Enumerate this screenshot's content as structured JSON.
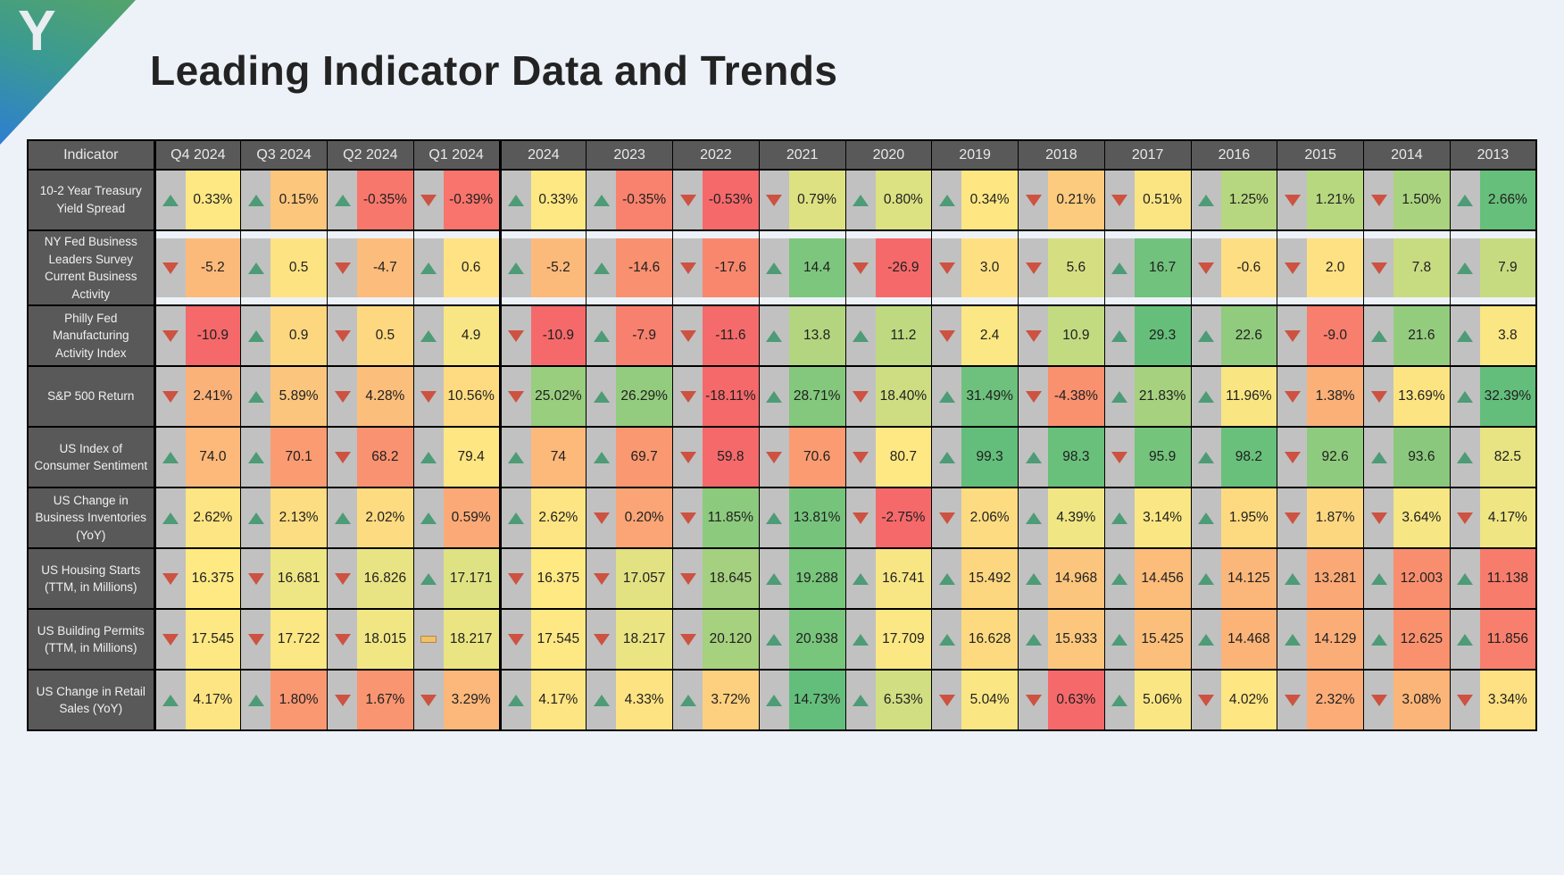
{
  "logo": {
    "letter": "Y"
  },
  "title": "Leading Indicator Data and Trends",
  "chart_data": {
    "type": "table",
    "title": "Leading Indicator Data and Trends",
    "columns": [
      "Indicator",
      "Q4 2024",
      "Q3 2024",
      "Q2 2024",
      "Q1 2024",
      "2024",
      "2023",
      "2022",
      "2021",
      "2020",
      "2019",
      "2018",
      "2017",
      "2016",
      "2015",
      "2014",
      "2013"
    ],
    "legend": {
      "up_color": "#4d9b77",
      "down_color": "#cd5241",
      "neutral_color": "#edc26b",
      "icon_strip_color": "#c1c1c1",
      "header_color": "#595959"
    },
    "rows": [
      {
        "indicator": "10-2 Year Treasury Yield Spread",
        "cells": [
          {
            "trend": "up",
            "value": "0.33%",
            "bg": "#FEE883"
          },
          {
            "trend": "up",
            "value": "0.15%",
            "bg": "#FCC67D"
          },
          {
            "trend": "up",
            "value": "-0.35%",
            "bg": "#F8776C"
          },
          {
            "trend": "down",
            "value": "-0.39%",
            "bg": "#F8746C"
          },
          {
            "trend": "up",
            "value": "0.33%",
            "bg": "#FEE883"
          },
          {
            "trend": "up",
            "value": "-0.35%",
            "bg": "#F8826E"
          },
          {
            "trend": "down",
            "value": "-0.53%",
            "bg": "#F5696B"
          },
          {
            "trend": "down",
            "value": "0.79%",
            "bg": "#DDE182"
          },
          {
            "trend": "up",
            "value": "0.80%",
            "bg": "#DCE182"
          },
          {
            "trend": "up",
            "value": "0.34%",
            "bg": "#FEE783"
          },
          {
            "trend": "down",
            "value": "0.21%",
            "bg": "#FCCB7E"
          },
          {
            "trend": "down",
            "value": "0.51%",
            "bg": "#FBE583"
          },
          {
            "trend": "up",
            "value": "1.25%",
            "bg": "#B6D77F"
          },
          {
            "trend": "down",
            "value": "1.21%",
            "bg": "#B8D880"
          },
          {
            "trend": "down",
            "value": "1.50%",
            "bg": "#AAD37F"
          },
          {
            "trend": "up",
            "value": "2.66%",
            "bg": "#66BF7B"
          }
        ]
      },
      {
        "indicator": "NY Fed Business Leaders Survey Current Business Activity",
        "cells": [
          {
            "trend": "down",
            "value": "-5.2",
            "bg": "#FCBA7A"
          },
          {
            "trend": "up",
            "value": "0.5",
            "bg": "#FEE383"
          },
          {
            "trend": "down",
            "value": "-4.7",
            "bg": "#FCBC7B"
          },
          {
            "trend": "up",
            "value": "0.6",
            "bg": "#FEE283"
          },
          {
            "trend": "up",
            "value": "-5.2",
            "bg": "#FCBA7A"
          },
          {
            "trend": "up",
            "value": "-14.6",
            "bg": "#F9906F"
          },
          {
            "trend": "down",
            "value": "-17.6",
            "bg": "#F8876E"
          },
          {
            "trend": "up",
            "value": "14.4",
            "bg": "#7DC67D"
          },
          {
            "trend": "down",
            "value": "-26.9",
            "bg": "#F5696B"
          },
          {
            "trend": "down",
            "value": "3.0",
            "bg": "#FEE083"
          },
          {
            "trend": "down",
            "value": "5.6",
            "bg": "#D5DF82"
          },
          {
            "trend": "up",
            "value": "16.7",
            "bg": "#70C27C"
          },
          {
            "trend": "down",
            "value": "-0.6",
            "bg": "#FEDE82"
          },
          {
            "trend": "down",
            "value": "2.0",
            "bg": "#FEE183"
          },
          {
            "trend": "down",
            "value": "7.8",
            "bg": "#C7DB80"
          },
          {
            "trend": "up",
            "value": "7.9",
            "bg": "#C6DB80"
          }
        ]
      },
      {
        "indicator": "Philly Fed Manufacturing Activity Index",
        "cells": [
          {
            "trend": "down",
            "value": "-10.9",
            "bg": "#F5696B"
          },
          {
            "trend": "up",
            "value": "0.9",
            "bg": "#FDD780"
          },
          {
            "trend": "down",
            "value": "0.5",
            "bg": "#FDD880"
          },
          {
            "trend": "up",
            "value": "4.9",
            "bg": "#F8E684"
          },
          {
            "trend": "down",
            "value": "-10.9",
            "bg": "#F5696B"
          },
          {
            "trend": "up",
            "value": "-7.9",
            "bg": "#F8806E"
          },
          {
            "trend": "down",
            "value": "-11.6",
            "bg": "#F56B6B"
          },
          {
            "trend": "up",
            "value": "13.8",
            "bg": "#B3D57F"
          },
          {
            "trend": "up",
            "value": "11.2",
            "bg": "#BFD980"
          },
          {
            "trend": "down",
            "value": "2.4",
            "bg": "#FBE783"
          },
          {
            "trend": "down",
            "value": "10.9",
            "bg": "#C2DA80"
          },
          {
            "trend": "up",
            "value": "29.3",
            "bg": "#65BF7B"
          },
          {
            "trend": "up",
            "value": "22.6",
            "bg": "#90CB7E"
          },
          {
            "trend": "down",
            "value": "-9.0",
            "bg": "#F87E6D"
          },
          {
            "trend": "up",
            "value": "21.6",
            "bg": "#94CC7E"
          },
          {
            "trend": "up",
            "value": "3.8",
            "bg": "#FAE683"
          }
        ]
      },
      {
        "indicator": "S&P 500 Return",
        "cells": [
          {
            "trend": "down",
            "value": "2.41%",
            "bg": "#FBB279"
          },
          {
            "trend": "up",
            "value": "5.89%",
            "bg": "#FCC57D"
          },
          {
            "trend": "down",
            "value": "4.28%",
            "bg": "#FCBE7B"
          },
          {
            "trend": "down",
            "value": "10.56%",
            "bg": "#FEDB81"
          },
          {
            "trend": "down",
            "value": "25.02%",
            "bg": "#98CE7E"
          },
          {
            "trend": "up",
            "value": "26.29%",
            "bg": "#93CC7E"
          },
          {
            "trend": "down",
            "value": "-18.11%",
            "bg": "#F5696B"
          },
          {
            "trend": "up",
            "value": "28.71%",
            "bg": "#83C87D"
          },
          {
            "trend": "down",
            "value": "18.40%",
            "bg": "#CEDD81"
          },
          {
            "trend": "up",
            "value": "31.49%",
            "bg": "#6DC17C"
          },
          {
            "trend": "down",
            "value": "-4.38%",
            "bg": "#F9916F"
          },
          {
            "trend": "up",
            "value": "21.83%",
            "bg": "#A6D17F"
          },
          {
            "trend": "up",
            "value": "11.96%",
            "bg": "#F9E683"
          },
          {
            "trend": "down",
            "value": "1.38%",
            "bg": "#FBB078"
          },
          {
            "trend": "down",
            "value": "13.69%",
            "bg": "#FDE483"
          },
          {
            "trend": "up",
            "value": "32.39%",
            "bg": "#63BE7B"
          }
        ]
      },
      {
        "indicator": "US Index of Consumer Sentiment",
        "cells": [
          {
            "trend": "up",
            "value": "74.0",
            "bg": "#FCB97A"
          },
          {
            "trend": "up",
            "value": "70.1",
            "bg": "#FA9B72"
          },
          {
            "trend": "down",
            "value": "68.2",
            "bg": "#F99270"
          },
          {
            "trend": "up",
            "value": "79.4",
            "bg": "#FEE683"
          },
          {
            "trend": "up",
            "value": "74",
            "bg": "#FCB97A"
          },
          {
            "trend": "up",
            "value": "69.7",
            "bg": "#F99871"
          },
          {
            "trend": "down",
            "value": "59.8",
            "bg": "#F5696B"
          },
          {
            "trend": "down",
            "value": "70.6",
            "bg": "#FA9B72"
          },
          {
            "trend": "down",
            "value": "80.7",
            "bg": "#FEE883"
          },
          {
            "trend": "up",
            "value": "99.3",
            "bg": "#63BE7B"
          },
          {
            "trend": "up",
            "value": "98.3",
            "bg": "#68C07B"
          },
          {
            "trend": "down",
            "value": "95.9",
            "bg": "#75C47C"
          },
          {
            "trend": "up",
            "value": "98.2",
            "bg": "#69C07B"
          },
          {
            "trend": "down",
            "value": "92.6",
            "bg": "#8FCB7E"
          },
          {
            "trend": "up",
            "value": "93.6",
            "bg": "#8AC97D"
          },
          {
            "trend": "up",
            "value": "82.5",
            "bg": "#E8E483"
          }
        ]
      },
      {
        "indicator": "US Change in Business Inventories (YoY)",
        "cells": [
          {
            "trend": "up",
            "value": "2.62%",
            "bg": "#FEE583"
          },
          {
            "trend": "up",
            "value": "2.13%",
            "bg": "#FDDD81"
          },
          {
            "trend": "up",
            "value": "2.02%",
            "bg": "#FDDB81"
          },
          {
            "trend": "up",
            "value": "0.59%",
            "bg": "#FBAA77"
          },
          {
            "trend": "up",
            "value": "2.62%",
            "bg": "#FEE583"
          },
          {
            "trend": "down",
            "value": "0.20%",
            "bg": "#FBA576"
          },
          {
            "trend": "down",
            "value": "11.85%",
            "bg": "#8CCA7E"
          },
          {
            "trend": "up",
            "value": "13.81%",
            "bg": "#76C47C"
          },
          {
            "trend": "down",
            "value": "-2.75%",
            "bg": "#F5696B"
          },
          {
            "trend": "down",
            "value": "2.06%",
            "bg": "#FDDC81"
          },
          {
            "trend": "up",
            "value": "4.39%",
            "bg": "#F0E684"
          },
          {
            "trend": "up",
            "value": "3.14%",
            "bg": "#FAE783"
          },
          {
            "trend": "up",
            "value": "1.95%",
            "bg": "#FDDA80"
          },
          {
            "trend": "down",
            "value": "1.87%",
            "bg": "#FDD780"
          },
          {
            "trend": "down",
            "value": "3.64%",
            "bg": "#F6E684"
          },
          {
            "trend": "down",
            "value": "4.17%",
            "bg": "#EFE583"
          }
        ]
      },
      {
        "indicator": "US Housing Starts (TTM, in Millions)",
        "cells": [
          {
            "trend": "down",
            "value": "16.375",
            "bg": "#FEE983"
          },
          {
            "trend": "down",
            "value": "16.681",
            "bg": "#EEE684"
          },
          {
            "trend": "down",
            "value": "16.826",
            "bg": "#E9E483"
          },
          {
            "trend": "up",
            "value": "17.171",
            "bg": "#DFE282"
          },
          {
            "trend": "down",
            "value": "16.375",
            "bg": "#FEE983"
          },
          {
            "trend": "down",
            "value": "17.057",
            "bg": "#E2E283"
          },
          {
            "trend": "down",
            "value": "18.645",
            "bg": "#A4D07F"
          },
          {
            "trend": "up",
            "value": "19.288",
            "bg": "#78C57C"
          },
          {
            "trend": "up",
            "value": "16.741",
            "bg": "#F8E684"
          },
          {
            "trend": "up",
            "value": "15.492",
            "bg": "#FDD680"
          },
          {
            "trend": "up",
            "value": "14.968",
            "bg": "#FCC57D"
          },
          {
            "trend": "up",
            "value": "14.456",
            "bg": "#FCBC7A"
          },
          {
            "trend": "up",
            "value": "14.125",
            "bg": "#FBB679"
          },
          {
            "trend": "up",
            "value": "13.281",
            "bg": "#FAA875"
          },
          {
            "trend": "up",
            "value": "12.003",
            "bg": "#F98E6F"
          },
          {
            "trend": "up",
            "value": "11.138",
            "bg": "#F87C6C"
          }
        ]
      },
      {
        "indicator": "US Building Permits (TTM, in Millions)",
        "cells": [
          {
            "trend": "down",
            "value": "17.545",
            "bg": "#FEE883"
          },
          {
            "trend": "down",
            "value": "17.722",
            "bg": "#FBE783"
          },
          {
            "trend": "down",
            "value": "18.015",
            "bg": "#F1E684"
          },
          {
            "trend": "flat",
            "value": "18.217",
            "bg": "#EAE483"
          },
          {
            "trend": "down",
            "value": "17.545",
            "bg": "#FEE883"
          },
          {
            "trend": "down",
            "value": "18.217",
            "bg": "#EAE483"
          },
          {
            "trend": "down",
            "value": "20.120",
            "bg": "#A6D17F"
          },
          {
            "trend": "up",
            "value": "20.938",
            "bg": "#78C57C"
          },
          {
            "trend": "up",
            "value": "17.709",
            "bg": "#FBE783"
          },
          {
            "trend": "up",
            "value": "16.628",
            "bg": "#FDDA80"
          },
          {
            "trend": "up",
            "value": "15.933",
            "bg": "#FCC77D"
          },
          {
            "trend": "up",
            "value": "15.425",
            "bg": "#FCBF7B"
          },
          {
            "trend": "up",
            "value": "14.468",
            "bg": "#FBB378"
          },
          {
            "trend": "up",
            "value": "14.129",
            "bg": "#FBAD77"
          },
          {
            "trend": "up",
            "value": "12.625",
            "bg": "#F9916F"
          },
          {
            "trend": "up",
            "value": "11.856",
            "bg": "#F87F6D"
          }
        ]
      },
      {
        "indicator": "US Change in Retail Sales (YoY)",
        "cells": [
          {
            "trend": "up",
            "value": "4.17%",
            "bg": "#FEE583"
          },
          {
            "trend": "up",
            "value": "1.80%",
            "bg": "#FA9872"
          },
          {
            "trend": "down",
            "value": "1.67%",
            "bg": "#F99571"
          },
          {
            "trend": "down",
            "value": "3.29%",
            "bg": "#FCB87A"
          },
          {
            "trend": "up",
            "value": "4.17%",
            "bg": "#FEE583"
          },
          {
            "trend": "up",
            "value": "4.33%",
            "bg": "#FEE382"
          },
          {
            "trend": "up",
            "value": "3.72%",
            "bg": "#FDD07F"
          },
          {
            "trend": "up",
            "value": "14.73%",
            "bg": "#63BE7B"
          },
          {
            "trend": "up",
            "value": "6.53%",
            "bg": "#D1DE81"
          },
          {
            "trend": "down",
            "value": "5.04%",
            "bg": "#FAE783"
          },
          {
            "trend": "down",
            "value": "0.63%",
            "bg": "#F5696B"
          },
          {
            "trend": "up",
            "value": "5.06%",
            "bg": "#FAE783"
          },
          {
            "trend": "down",
            "value": "4.02%",
            "bg": "#FEE683"
          },
          {
            "trend": "down",
            "value": "2.32%",
            "bg": "#FBAC77"
          },
          {
            "trend": "down",
            "value": "3.08%",
            "bg": "#FCB579"
          },
          {
            "trend": "down",
            "value": "3.34%",
            "bg": "#FEE182"
          }
        ]
      }
    ]
  }
}
